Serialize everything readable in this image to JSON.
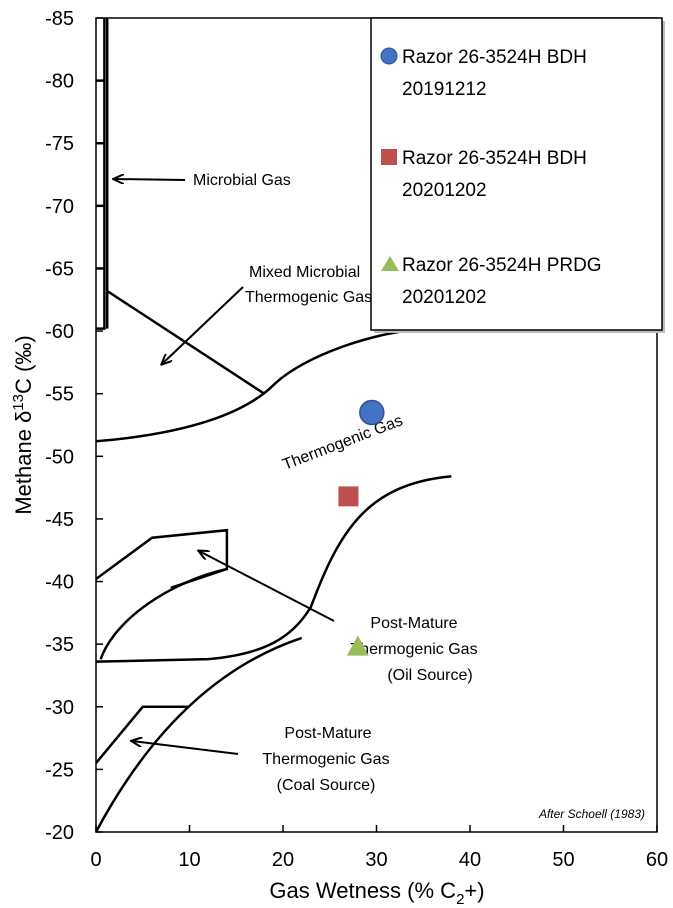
{
  "chart_data": {
    "type": "scatter",
    "title": "",
    "xlabel": "Gas Wetness (% C",
    "xlabel_sub": "2",
    "xlabel_end": "+)",
    "ylabel": "Methane  δ",
    "ylabel_sup": "13",
    "ylabel_end": "C (‰)",
    "xlim": [
      0,
      60
    ],
    "ylim": [
      -20,
      -85
    ],
    "x_ticks": [
      0,
      10,
      20,
      30,
      40,
      50,
      60
    ],
    "y_ticks": [
      -20,
      -25,
      -30,
      -35,
      -40,
      -45,
      -50,
      -55,
      -60,
      -65,
      -70,
      -75,
      -80,
      -85
    ],
    "grid": false,
    "legend_position": "top-right",
    "series": [
      {
        "name": "Razor 26-3524H BDH 20191212",
        "legend_line1": "Razor 26-3524H BDH",
        "legend_line2": "20191212",
        "marker": "circle",
        "color": "#4472C4",
        "x": [
          29.5
        ],
        "y": [
          -53.5
        ]
      },
      {
        "name": "Razor 26-3524H BDH 20201202",
        "legend_line1": "Razor 26-3524H BDH",
        "legend_line2": "20201202",
        "marker": "square",
        "color": "#C0504D",
        "x": [
          27.0
        ],
        "y": [
          -46.8
        ]
      },
      {
        "name": "Razor 26-3524H PRDG 20201202",
        "legend_line1": "Razor 26-3524H PRDG",
        "legend_line2": "20201202",
        "marker": "triangle",
        "color": "#9BBB59",
        "x": [
          28.0
        ],
        "y": [
          -34.8
        ]
      }
    ],
    "annotations": {
      "microbial": "Microbial Gas",
      "mixed_1": "Mixed Microbial",
      "mixed_2": "Thermogenic Gas",
      "thermogenic": "Thermogenic Gas",
      "oil_1": "Post-Mature",
      "oil_2": "Thermogenic Gas",
      "oil_3": "(Oil Source)",
      "coal_1": "Post-Mature",
      "coal_2": "Thermogenic Gas",
      "coal_3": "(Coal Source)",
      "credit": "After Schoell (1983)"
    }
  }
}
